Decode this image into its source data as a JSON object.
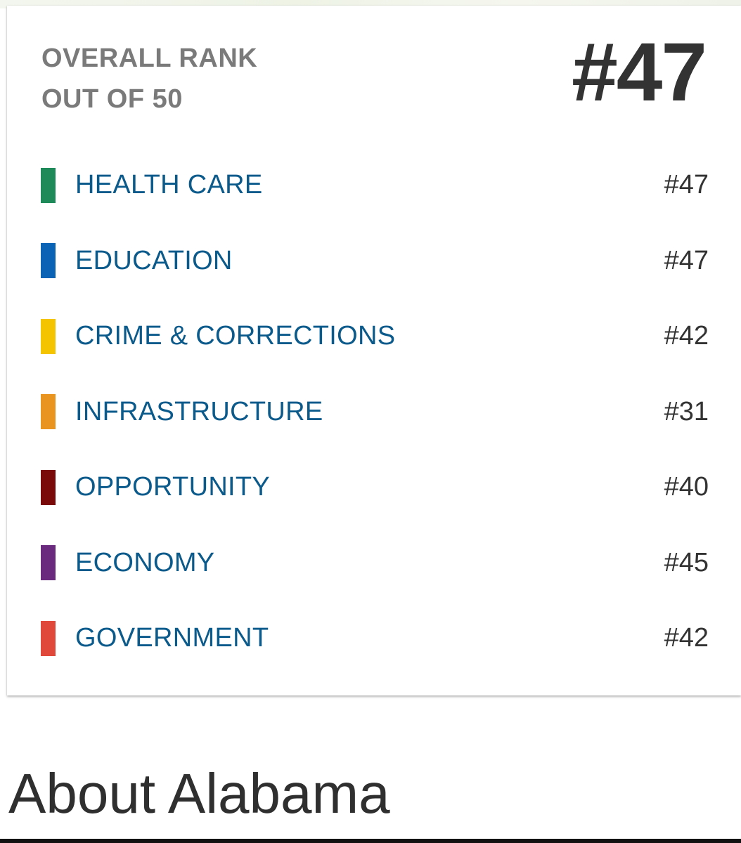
{
  "overall": {
    "label_line1": "OVERALL RANK",
    "label_line2": "OUT OF 50",
    "rank": "#47"
  },
  "categories": [
    {
      "label": "HEALTH CARE",
      "rank": "#47",
      "color": "#1e8a5a"
    },
    {
      "label": "EDUCATION",
      "rank": "#47",
      "color": "#0b63b5"
    },
    {
      "label": "CRIME & CORRECTIONS",
      "rank": "#42",
      "color": "#f5c400"
    },
    {
      "label": "INFRASTRUCTURE",
      "rank": "#31",
      "color": "#e8941f"
    },
    {
      "label": "OPPORTUNITY",
      "rank": "#40",
      "color": "#7a0a0a"
    },
    {
      "label": "ECONOMY",
      "rank": "#45",
      "color": "#6a2b7e"
    },
    {
      "label": "GOVERNMENT",
      "rank": "#42",
      "color": "#e0483a"
    }
  ],
  "about": {
    "heading": "About Alabama"
  }
}
